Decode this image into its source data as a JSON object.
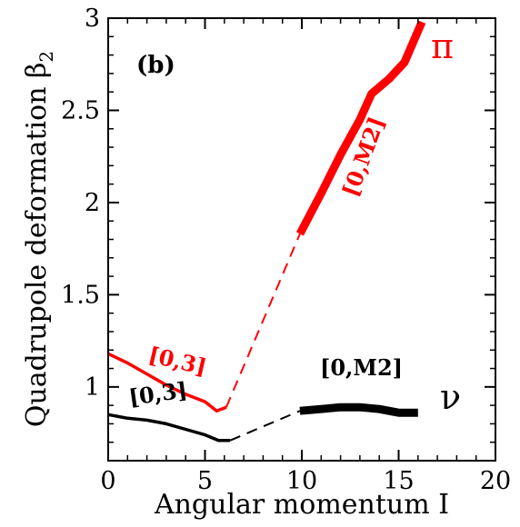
{
  "chart_data": {
    "type": "line",
    "xlabel": "Angular  momentum  I",
    "ylabel": "Quadrupole  deformation  β",
    "ylabel_subscript": "2",
    "panel_label": "(b)",
    "xlim": [
      0,
      20
    ],
    "ylim": [
      0.6,
      3.0
    ],
    "xticks": [
      0,
      5,
      10,
      15,
      20
    ],
    "xtick_labels": [
      "0",
      "5",
      "10",
      "15",
      "20"
    ],
    "yticks": [
      1.0,
      1.5,
      2.0,
      2.5,
      3.0
    ],
    "ytick_labels": [
      "1",
      "1.5",
      "2",
      "2.5",
      "3"
    ],
    "grid": false,
    "series": [
      {
        "name": "π",
        "color": "#ff0000",
        "segments": [
          {
            "style": "solid",
            "weight": "medium",
            "label": "[0,3]",
            "x": [
              0,
              1,
              2,
              3,
              4,
              5,
              5.6,
              6.1
            ],
            "y": [
              1.18,
              1.13,
              1.07,
              1.01,
              0.96,
              0.92,
              0.87,
              0.89
            ]
          },
          {
            "style": "dashed",
            "weight": "thin",
            "x": [
              6.1,
              9.9
            ],
            "y": [
              0.89,
              1.83
            ]
          },
          {
            "style": "solid",
            "weight": "thick",
            "label": "[0,M2]",
            "x": [
              9.9,
              11,
              12,
              13,
              13.6,
              14.5,
              15.3,
              16.2
            ],
            "y": [
              1.83,
              2.05,
              2.26,
              2.45,
              2.59,
              2.67,
              2.76,
              2.98
            ]
          }
        ]
      },
      {
        "name": "ν",
        "color": "#000000",
        "segments": [
          {
            "style": "solid",
            "weight": "medium",
            "label": "[0,3]",
            "x": [
              0,
              1,
              2,
              3,
              4,
              5,
              5.7,
              6.3
            ],
            "y": [
              0.85,
              0.83,
              0.82,
              0.8,
              0.77,
              0.74,
              0.71,
              0.71
            ]
          },
          {
            "style": "dashed",
            "weight": "thin",
            "x": [
              6.3,
              9.9
            ],
            "y": [
              0.71,
              0.87
            ]
          },
          {
            "style": "solid",
            "weight": "thick",
            "label": "[0,M2]",
            "x": [
              9.9,
              11,
              12,
              13,
              14,
              15,
              16
            ],
            "y": [
              0.87,
              0.88,
              0.89,
              0.89,
              0.88,
              0.86,
              0.86
            ]
          }
        ]
      }
    ]
  }
}
